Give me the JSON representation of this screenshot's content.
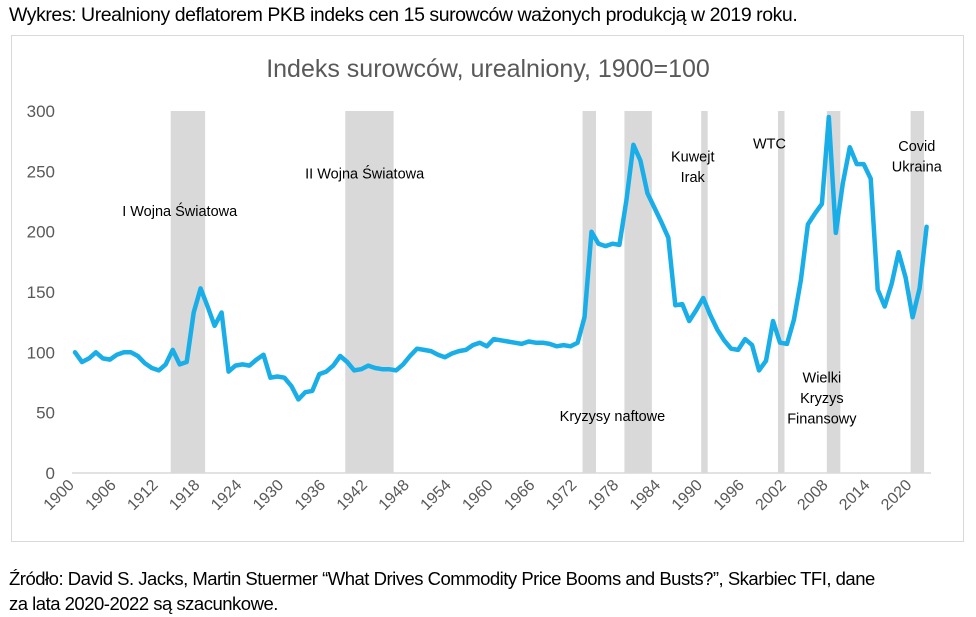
{
  "caption": "Wykres: Urealniony deflatorem PKB indeks cen 15 surowców ważonych produkcją w 2019 roku.",
  "source_note_line1": "Źródło: David S. Jacks, Martin Stuermer “What Drives Commodity Price Booms and Busts?”, Skarbiec TFI, dane",
  "source_note_line2": "za lata 2020-2022 są szacunkowe.",
  "colors": {
    "line": "#1aaee8",
    "shade": "#d9d9d9",
    "axis": "#d9d9d9",
    "tick_text": "#595959",
    "title": "#595959",
    "annotation": "#000000"
  },
  "chart_data": {
    "type": "line",
    "title": "Indeks surowców, urealniony, 1900=100",
    "xlabel": "",
    "ylabel": "",
    "ylim": [
      0,
      300
    ],
    "xlim": [
      1900,
      2022
    ],
    "yticks": [
      0,
      50,
      100,
      150,
      200,
      250,
      300
    ],
    "xticks": [
      1900,
      1906,
      1912,
      1918,
      1924,
      1930,
      1936,
      1942,
      1948,
      1954,
      1960,
      1966,
      1972,
      1978,
      1984,
      1990,
      1996,
      2002,
      2008,
      2014,
      2020
    ],
    "grid": false,
    "legend": "none",
    "series": [
      {
        "name": "Indeks surowców (urealniony)",
        "x": [
          1900,
          1901,
          1902,
          1903,
          1904,
          1905,
          1906,
          1907,
          1908,
          1909,
          1910,
          1911,
          1912,
          1913,
          1914,
          1915,
          1916,
          1917,
          1918,
          1919,
          1920,
          1921,
          1922,
          1923,
          1924,
          1925,
          1926,
          1927,
          1928,
          1929,
          1930,
          1931,
          1932,
          1933,
          1934,
          1935,
          1936,
          1937,
          1938,
          1939,
          1940,
          1941,
          1942,
          1943,
          1944,
          1945,
          1946,
          1947,
          1948,
          1949,
          1950,
          1951,
          1952,
          1953,
          1954,
          1955,
          1956,
          1957,
          1958,
          1959,
          1960,
          1961,
          1962,
          1963,
          1964,
          1965,
          1966,
          1967,
          1968,
          1969,
          1970,
          1971,
          1972,
          1973,
          1974,
          1975,
          1976,
          1977,
          1978,
          1979,
          1980,
          1981,
          1982,
          1983,
          1984,
          1985,
          1986,
          1987,
          1988,
          1989,
          1990,
          1991,
          1992,
          1993,
          1994,
          1995,
          1996,
          1997,
          1998,
          1999,
          2000,
          2001,
          2002,
          2003,
          2004,
          2005,
          2006,
          2007,
          2008,
          2009,
          2010,
          2011,
          2012,
          2013,
          2014,
          2015,
          2016,
          2017,
          2018,
          2019,
          2020,
          2021,
          2022
        ],
        "values": [
          100,
          92,
          95,
          100,
          95,
          94,
          98,
          100,
          100,
          97,
          91,
          87,
          85,
          90,
          102,
          90,
          92,
          133,
          153,
          138,
          122,
          133,
          84,
          89,
          90,
          89,
          94,
          98,
          79,
          80,
          79,
          72,
          61,
          67,
          68,
          82,
          84,
          89,
          97,
          92,
          85,
          86,
          89,
          87,
          86,
          86,
          85,
          90,
          97,
          103,
          102,
          101,
          98,
          96,
          99,
          101,
          102,
          106,
          108,
          105,
          111,
          110,
          109,
          108,
          107,
          109,
          108,
          108,
          107,
          105,
          106,
          105,
          108,
          129,
          200,
          190,
          188,
          190,
          189,
          226,
          272,
          259,
          232,
          220,
          208,
          195,
          139,
          140,
          126,
          135,
          145,
          131,
          119,
          110,
          103,
          102,
          111,
          106,
          85,
          93,
          126,
          108,
          107,
          127,
          160,
          206,
          215,
          223,
          295,
          199,
          240,
          270,
          256,
          256,
          244,
          152,
          138,
          157,
          183,
          162,
          129,
          153,
          204
        ]
      }
    ],
    "shaded_periods": [
      {
        "label": "I Wojna Światowa",
        "start": 1914,
        "end": 1918
      },
      {
        "label": "II Wojna Światowa",
        "start": 1939,
        "end": 1945
      },
      {
        "label": "Kryzysy naftowe (1)",
        "start": 1973,
        "end": 1974
      },
      {
        "label": "Kryzysy naftowe (2)",
        "start": 1979,
        "end": 1982
      },
      {
        "label": "Kuwejt Irak",
        "start": 1990,
        "end": 1990
      },
      {
        "label": "WTC",
        "start": 2001,
        "end": 2001
      },
      {
        "label": "Wielki Kryzys Finansowy",
        "start": 2008,
        "end": 2009
      },
      {
        "label": "Covid Ukraina",
        "start": 2020,
        "end": 2021
      }
    ],
    "annotations": [
      {
        "id": "ww1",
        "lines": [
          "I Wojna Światowa"
        ],
        "year": 1915,
        "value": 213
      },
      {
        "id": "ww2",
        "lines": [
          "II Wojna Światowa"
        ],
        "year": 1941.5,
        "value": 244
      },
      {
        "id": "oil",
        "lines": [
          "Kryzysy naftowe"
        ],
        "year": 1977,
        "value": 43
      },
      {
        "id": "kuwait",
        "lines": [
          "Kuwejt",
          "Irak"
        ],
        "year": 1988.5,
        "value": 258
      },
      {
        "id": "wtc",
        "lines": [
          "WTC"
        ],
        "year": 1999.5,
        "value": 269
      },
      {
        "id": "gfc",
        "lines": [
          "Wielki",
          "Kryzys",
          "Finansowy"
        ],
        "year": 2007,
        "value": 75
      },
      {
        "id": "covid",
        "lines": [
          "Covid",
          "Ukraina"
        ],
        "year": 2020.6,
        "value": 267
      }
    ]
  }
}
